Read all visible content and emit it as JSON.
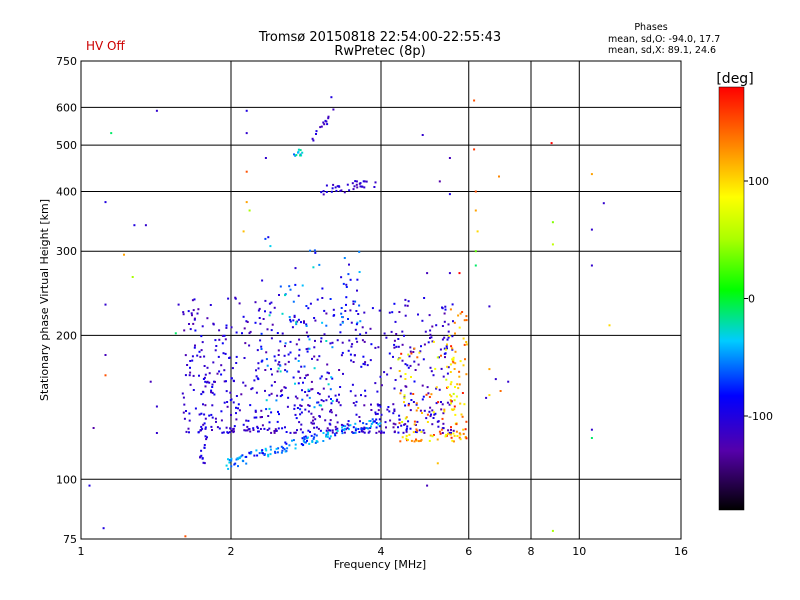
{
  "header": {
    "title_line1": "Tromsø 20150818 22:54:00-22:55:43",
    "title_line2": "RwPretec (8p)",
    "status": "HV Off",
    "status_color": "#cc0000"
  },
  "stats": {
    "heading": "Phases",
    "line_o": "mean, sd,O: -94.0, 17.7",
    "line_x": "mean, sd,X:  89.1, 24.6"
  },
  "colorbar": {
    "unit_label": "[deg]",
    "range": [
      -180,
      180
    ],
    "ticks": [
      {
        "value": 100,
        "label": "100"
      },
      {
        "value": 0,
        "label": "0"
      },
      {
        "value": -100,
        "label": "-100"
      }
    ]
  },
  "chart_data": {
    "type": "scatter",
    "xlabel": "Frequency [MHz]",
    "ylabel": "Stationary phase Virtual Height [km]",
    "xscale": "log",
    "yscale": "log",
    "xlim": [
      1,
      16
    ],
    "ylim": [
      75,
      750
    ],
    "grid": true,
    "x_ticks": [
      {
        "value": 1,
        "label": "1"
      },
      {
        "value": 2,
        "label": "2"
      },
      {
        "value": 4,
        "label": "4"
      },
      {
        "value": 6,
        "label": "6"
      },
      {
        "value": 8,
        "label": "8"
      },
      {
        "value": 10,
        "label": "10"
      },
      {
        "value": 16,
        "label": "16"
      }
    ],
    "y_ticks": [
      {
        "value": 75,
        "label": "75"
      },
      {
        "value": 100,
        "label": "100"
      },
      {
        "value": 200,
        "label": "200"
      },
      {
        "value": 300,
        "label": "300"
      },
      {
        "value": 400,
        "label": "400"
      },
      {
        "value": 500,
        "label": "500"
      },
      {
        "value": 600,
        "label": "600"
      },
      {
        "value": 750,
        "label": "750"
      }
    ],
    "points": [
      {
        "f": 1.15,
        "h": 530,
        "p": -10
      },
      {
        "f": 1.42,
        "h": 590,
        "p": -110
      },
      {
        "f": 1.12,
        "h": 380,
        "p": -100
      },
      {
        "f": 1.28,
        "h": 340,
        "p": -100
      },
      {
        "f": 1.35,
        "h": 340,
        "p": -110
      },
      {
        "f": 1.22,
        "h": 295,
        "p": 120
      },
      {
        "f": 1.27,
        "h": 265,
        "p": 50
      },
      {
        "f": 1.12,
        "h": 232,
        "p": -110
      },
      {
        "f": 1.12,
        "h": 182,
        "p": -120
      },
      {
        "f": 1.12,
        "h": 165,
        "p": 150
      },
      {
        "f": 1.38,
        "h": 160,
        "p": -120
      },
      {
        "f": 1.42,
        "h": 142,
        "p": -110
      },
      {
        "f": 1.42,
        "h": 125,
        "p": -110
      },
      {
        "f": 1.06,
        "h": 128,
        "p": -130
      },
      {
        "f": 1.04,
        "h": 97,
        "p": -100
      },
      {
        "f": 1.11,
        "h": 79,
        "p": -100
      },
      {
        "f": 1.55,
        "h": 202,
        "p": -10
      },
      {
        "f": 1.57,
        "h": 232,
        "p": -110
      },
      {
        "f": 1.62,
        "h": 76,
        "p": 150
      },
      {
        "f": 2.15,
        "h": 590,
        "p": -100
      },
      {
        "f": 2.15,
        "h": 530,
        "p": -110
      },
      {
        "f": 2.15,
        "h": 440,
        "p": 150
      },
      {
        "f": 2.15,
        "h": 380,
        "p": 120
      },
      {
        "f": 2.18,
        "h": 365,
        "p": 50
      },
      {
        "f": 2.12,
        "h": 330,
        "p": 110
      },
      {
        "f": 2.35,
        "h": 470,
        "p": -110
      },
      {
        "f": 3.18,
        "h": 630,
        "p": -100
      },
      {
        "f": 4.85,
        "h": 525,
        "p": -110
      },
      {
        "f": 5.5,
        "h": 470,
        "p": -120
      },
      {
        "f": 5.25,
        "h": 420,
        "p": -130
      },
      {
        "f": 5.5,
        "h": 395,
        "p": -100
      },
      {
        "f": 6.15,
        "h": 620,
        "p": 150
      },
      {
        "f": 6.15,
        "h": 490,
        "p": 160
      },
      {
        "f": 6.2,
        "h": 400,
        "p": 150
      },
      {
        "f": 6.2,
        "h": 365,
        "p": 120
      },
      {
        "f": 6.25,
        "h": 330,
        "p": 100
      },
      {
        "f": 6.2,
        "h": 300,
        "p": 30
      },
      {
        "f": 6.2,
        "h": 280,
        "p": -10
      },
      {
        "f": 6.9,
        "h": 430,
        "p": 130
      },
      {
        "f": 5.75,
        "h": 270,
        "p": 180
      },
      {
        "f": 5.5,
        "h": 270,
        "p": -110
      },
      {
        "f": 4.95,
        "h": 270,
        "p": -120
      },
      {
        "f": 8.8,
        "h": 505,
        "p": 180
      },
      {
        "f": 8.85,
        "h": 345,
        "p": 40
      },
      {
        "f": 8.85,
        "h": 310,
        "p": 60
      },
      {
        "f": 8.85,
        "h": 78,
        "p": 50
      },
      {
        "f": 10.6,
        "h": 435,
        "p": 120
      },
      {
        "f": 11.2,
        "h": 378,
        "p": -110
      },
      {
        "f": 10.6,
        "h": 333,
        "p": -110
      },
      {
        "f": 10.6,
        "h": 280,
        "p": -110
      },
      {
        "f": 11.5,
        "h": 210,
        "p": 100
      },
      {
        "f": 10.6,
        "h": 127,
        "p": -110
      },
      {
        "f": 10.6,
        "h": 122,
        "p": -10
      },
      {
        "f": 4.95,
        "h": 97,
        "p": -120
      },
      {
        "f": 5.2,
        "h": 108,
        "p": 110
      },
      {
        "f": 6.8,
        "h": 162,
        "p": -110
      },
      {
        "f": 7.2,
        "h": 160,
        "p": -110
      },
      {
        "f": 6.95,
        "h": 153,
        "p": 140
      },
      {
        "f": 6.6,
        "h": 150,
        "p": 100
      },
      {
        "f": 6.5,
        "h": 148,
        "p": -110
      },
      {
        "f": 6.6,
        "h": 230,
        "p": -110
      },
      {
        "f": 6.6,
        "h": 170,
        "p": 120
      }
    ],
    "clusters": [
      {
        "f0": 2.88,
        "h0": 500,
        "f1": 3.22,
        "h1": 590,
        "n": 14,
        "jf": 0.02,
        "jh": 12,
        "pmin": -125,
        "pmax": -95
      },
      {
        "f0": 2.68,
        "h0": 470,
        "f1": 2.78,
        "h1": 492,
        "n": 12,
        "jf": 0.04,
        "jh": 8,
        "pmin": -60,
        "pmax": -10
      },
      {
        "f0": 3.0,
        "h0": 400,
        "f1": 3.95,
        "h1": 420,
        "n": 36,
        "jf": 0.03,
        "jh": 10,
        "pmin": -125,
        "pmax": -95
      },
      {
        "f0": 1.6,
        "h0": 125,
        "f1": 5.6,
        "h1": 240,
        "n": 700,
        "jf": 0.02,
        "jh": 2,
        "pmin": -130,
        "pmax": -85,
        "mode": "box"
      },
      {
        "f0": 1.95,
        "h0": 107,
        "f1": 4.0,
        "h1": 132,
        "n": 140,
        "jf": 0.0,
        "jh": 3,
        "pmin": -95,
        "pmax": -30,
        "mode": "floor"
      },
      {
        "f0": 2.3,
        "h0": 140,
        "f1": 3.2,
        "h1": 330,
        "n": 90,
        "jf": 0.02,
        "jh": 3,
        "pmin": -110,
        "pmax": -20,
        "mode": "box"
      },
      {
        "f0": 4.3,
        "h0": 120,
        "f1": 5.7,
        "h1": 200,
        "n": 100,
        "jf": 0.02,
        "jh": 2,
        "pmin": 60,
        "pmax": 170,
        "mode": "box"
      },
      {
        "f0": 5.5,
        "h0": 120,
        "f1": 5.95,
        "h1": 230,
        "n": 60,
        "jf": 0.01,
        "jh": 2,
        "pmin": 80,
        "pmax": 170,
        "mode": "box"
      },
      {
        "f0": 3.3,
        "h0": 210,
        "f1": 3.65,
        "h1": 300,
        "n": 25,
        "jf": 0.02,
        "jh": 3,
        "pmin": -110,
        "pmax": -40,
        "mode": "box"
      },
      {
        "f0": 1.72,
        "h0": 108,
        "f1": 1.8,
        "h1": 145,
        "n": 20,
        "jf": 0.01,
        "jh": 2,
        "pmin": -120,
        "pmax": -90,
        "mode": "box"
      }
    ]
  }
}
